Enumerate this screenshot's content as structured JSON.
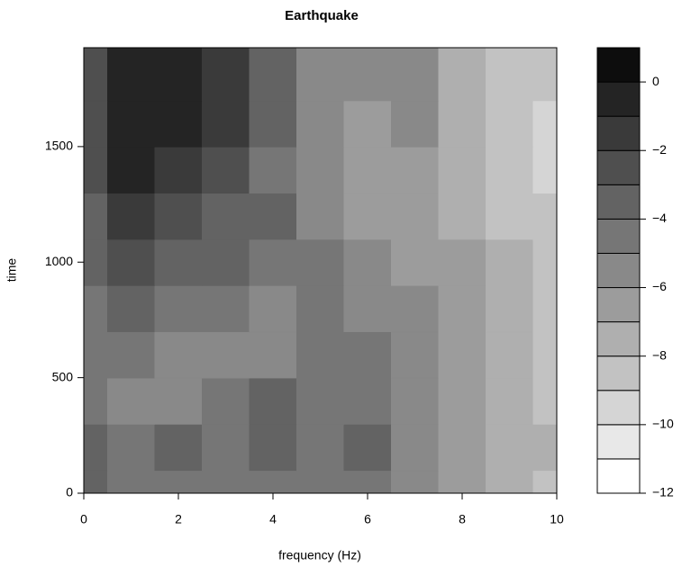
{
  "chart_data": {
    "type": "contour",
    "title": "Earthquake",
    "x_label": "frequency (Hz)",
    "y_label": "time",
    "x": [
      0,
      1,
      2,
      3,
      4,
      5,
      6,
      7,
      8,
      9,
      10
    ],
    "y": [
      0,
      200,
      400,
      600,
      800,
      1000,
      1200,
      1400,
      1600,
      1800
    ],
    "z": [
      [
        -4,
        -5,
        -5,
        -5,
        -5,
        -5,
        -5,
        -6,
        -7,
        -8,
        -9
      ],
      [
        -4,
        -5,
        -4,
        -5,
        -4,
        -5,
        -4,
        -6,
        -7,
        -8,
        -8
      ],
      [
        -5,
        -6,
        -6,
        -5,
        -4,
        -5,
        -5,
        -6,
        -7,
        -8,
        -9
      ],
      [
        -5,
        -5,
        -6,
        -6,
        -6,
        -5,
        -5,
        -6,
        -7,
        -8,
        -9
      ],
      [
        -5,
        -4,
        -5,
        -5,
        -6,
        -5,
        -6,
        -6,
        -7,
        -8,
        -9
      ],
      [
        -4,
        -3,
        -4,
        -4,
        -5,
        -5,
        -6,
        -7,
        -7,
        -8,
        -9
      ],
      [
        -4,
        -2,
        -3,
        -4,
        -4,
        -6,
        -7,
        -7,
        -8,
        -9,
        -9
      ],
      [
        -3,
        -1,
        -2,
        -3,
        -5,
        -6,
        -7,
        -7,
        -8,
        -9,
        -10
      ],
      [
        -3,
        -1,
        -1,
        -2,
        -4,
        -6,
        -7,
        -6,
        -8,
        -9,
        -10
      ],
      [
        -3,
        -1,
        -1,
        -2,
        -4,
        -6,
        -6,
        -6,
        -8,
        -9,
        -9
      ]
    ],
    "levels": [
      -12,
      -11,
      -10,
      -9,
      -8,
      -7,
      -6,
      -5,
      -4,
      -3,
      -2,
      -1,
      0,
      1
    ],
    "colors": [
      "#ffffff",
      "#e8e8e8",
      "#d5d5d5",
      "#c2c2c2",
      "#afafaf",
      "#9c9c9c",
      "#898989",
      "#767676",
      "#636363",
      "#4f4f4f",
      "#3a3a3a",
      "#242424",
      "#0d0d0d"
    ],
    "xlim": [
      0,
      10
    ],
    "xticks": [
      0,
      2,
      4,
      6,
      8,
      10
    ],
    "ylim": [
      0,
      1928
    ],
    "yticks": [
      0,
      500,
      1000,
      1500
    ],
    "colorbar_ticks": [
      {
        "value": -12,
        "label": "−12"
      },
      {
        "value": -10,
        "label": "−10"
      },
      {
        "value": -8,
        "label": "−8"
      },
      {
        "value": -6,
        "label": "−6"
      },
      {
        "value": -4,
        "label": "−4"
      },
      {
        "value": -2,
        "label": "−2"
      },
      0
    ]
  }
}
